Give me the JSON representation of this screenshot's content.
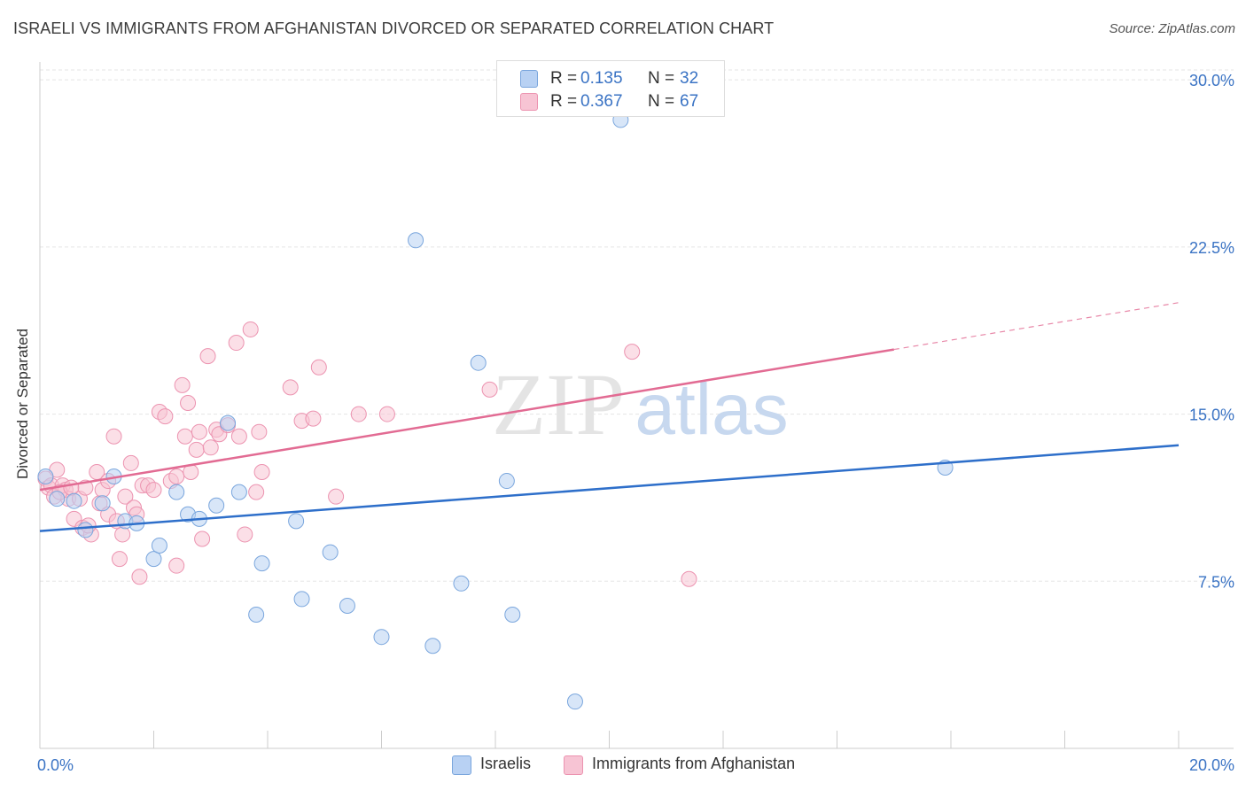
{
  "title": "ISRAELI VS IMMIGRANTS FROM AFGHANISTAN DIVORCED OR SEPARATED CORRELATION CHART",
  "source": "Source: ZipAtlas.com",
  "watermark": {
    "zip": "ZIP",
    "atlas": "atlas"
  },
  "legend": {
    "rows": [
      {
        "r_label": "R =",
        "r_value": "0.135",
        "n_label": "N =",
        "n_value": "32"
      },
      {
        "r_label": "R =",
        "r_value": "0.367",
        "n_label": "N =",
        "n_value": "67"
      }
    ],
    "bottom": [
      "Israelis",
      "Immigrants from Afghanistan"
    ]
  },
  "colors": {
    "blue_fill": "#b8d1f3",
    "blue_stroke": "#7aa6dd",
    "blue_line": "#2e6fca",
    "pink_fill": "#f7c4d4",
    "pink_stroke": "#ec93b0",
    "pink_line": "#e26b93",
    "axis_tick_text": "#3a73c4",
    "grid": "#e5e5e5"
  },
  "chart_data": {
    "type": "scatter",
    "title": "ISRAELI VS IMMIGRANTS FROM AFGHANISTAN DIVORCED OR SEPARATED CORRELATION CHART",
    "xlabel": "",
    "ylabel": "Divorced or Separated",
    "xlim": [
      0,
      20
    ],
    "ylim": [
      0,
      30.8
    ],
    "x_ticks": [
      0,
      20
    ],
    "x_tick_labels": [
      "0.0%",
      "20.0%"
    ],
    "y_ticks": [
      7.5,
      15.0,
      22.5,
      30.0
    ],
    "y_tick_labels": [
      "7.5%",
      "15.0%",
      "22.5%",
      "30.0%"
    ],
    "grid": true,
    "legend_position": "top-center",
    "series": [
      {
        "name": "Israelis",
        "r": 0.135,
        "n": 32,
        "trend": {
          "x": [
            0,
            20
          ],
          "y": [
            9.75,
            13.6
          ]
        },
        "points": [
          [
            0.1,
            12.2
          ],
          [
            0.3,
            11.2
          ],
          [
            0.6,
            11.1
          ],
          [
            0.8,
            9.8
          ],
          [
            1.1,
            11.0
          ],
          [
            1.3,
            12.2
          ],
          [
            1.5,
            10.2
          ],
          [
            1.7,
            10.1
          ],
          [
            2.0,
            8.5
          ],
          [
            2.1,
            9.1
          ],
          [
            2.4,
            11.5
          ],
          [
            2.6,
            10.5
          ],
          [
            2.8,
            10.3
          ],
          [
            3.1,
            10.9
          ],
          [
            3.3,
            14.6
          ],
          [
            3.5,
            11.5
          ],
          [
            3.8,
            6.0
          ],
          [
            3.9,
            8.3
          ],
          [
            4.5,
            10.2
          ],
          [
            4.6,
            6.7
          ],
          [
            5.1,
            8.8
          ],
          [
            5.4,
            6.4
          ],
          [
            6.0,
            5.0
          ],
          [
            6.6,
            22.8
          ],
          [
            6.9,
            4.6
          ],
          [
            7.4,
            7.4
          ],
          [
            7.7,
            17.3
          ],
          [
            8.2,
            12.0
          ],
          [
            8.3,
            6.0
          ],
          [
            9.4,
            2.1
          ],
          [
            10.2,
            28.2
          ],
          [
            15.9,
            12.6
          ]
        ]
      },
      {
        "name": "Immigrants from Afghanistan",
        "r": 0.367,
        "n": 67,
        "trend": {
          "x": [
            0,
            15.0
          ],
          "y": [
            11.6,
            17.9
          ]
        },
        "trend_dashed": {
          "x": [
            15.0,
            20
          ],
          "y": [
            17.9,
            20.0
          ]
        },
        "points": [
          [
            0.1,
            12.1
          ],
          [
            0.15,
            11.7
          ],
          [
            0.2,
            11.8
          ],
          [
            0.25,
            11.3
          ],
          [
            0.3,
            12.5
          ],
          [
            0.4,
            11.8
          ],
          [
            0.45,
            11.6
          ],
          [
            0.5,
            11.2
          ],
          [
            0.6,
            10.3
          ],
          [
            0.7,
            11.2
          ],
          [
            0.75,
            9.9
          ],
          [
            0.8,
            11.7
          ],
          [
            0.9,
            9.6
          ],
          [
            1.0,
            12.4
          ],
          [
            1.05,
            11.0
          ],
          [
            1.1,
            11.6
          ],
          [
            1.2,
            12.0
          ],
          [
            1.2,
            10.5
          ],
          [
            1.3,
            14.0
          ],
          [
            1.35,
            10.2
          ],
          [
            1.4,
            8.5
          ],
          [
            1.45,
            9.6
          ],
          [
            1.5,
            11.3
          ],
          [
            1.6,
            12.8
          ],
          [
            1.65,
            10.8
          ],
          [
            1.7,
            10.5
          ],
          [
            1.75,
            7.7
          ],
          [
            1.8,
            11.8
          ],
          [
            1.9,
            11.8
          ],
          [
            2.0,
            11.6
          ],
          [
            2.1,
            15.1
          ],
          [
            2.2,
            14.9
          ],
          [
            2.3,
            12.0
          ],
          [
            2.4,
            12.2
          ],
          [
            2.4,
            8.2
          ],
          [
            2.5,
            16.3
          ],
          [
            2.55,
            14.0
          ],
          [
            2.6,
            15.5
          ],
          [
            2.65,
            12.4
          ],
          [
            2.75,
            13.4
          ],
          [
            2.8,
            14.2
          ],
          [
            2.85,
            9.4
          ],
          [
            2.95,
            17.6
          ],
          [
            3.0,
            13.5
          ],
          [
            3.1,
            14.3
          ],
          [
            3.15,
            14.1
          ],
          [
            3.3,
            14.5
          ],
          [
            3.45,
            18.2
          ],
          [
            3.5,
            14.0
          ],
          [
            3.6,
            9.6
          ],
          [
            3.7,
            18.8
          ],
          [
            3.8,
            11.5
          ],
          [
            3.85,
            14.2
          ],
          [
            3.9,
            12.4
          ],
          [
            4.4,
            16.2
          ],
          [
            4.6,
            14.7
          ],
          [
            4.8,
            14.8
          ],
          [
            4.9,
            17.1
          ],
          [
            5.2,
            11.3
          ],
          [
            5.6,
            15.0
          ],
          [
            6.1,
            15.0
          ],
          [
            7.9,
            16.1
          ],
          [
            10.4,
            17.8
          ],
          [
            11.4,
            7.6
          ],
          [
            0.35,
            11.5
          ],
          [
            0.55,
            11.7
          ],
          [
            0.85,
            10.0
          ]
        ]
      }
    ]
  }
}
